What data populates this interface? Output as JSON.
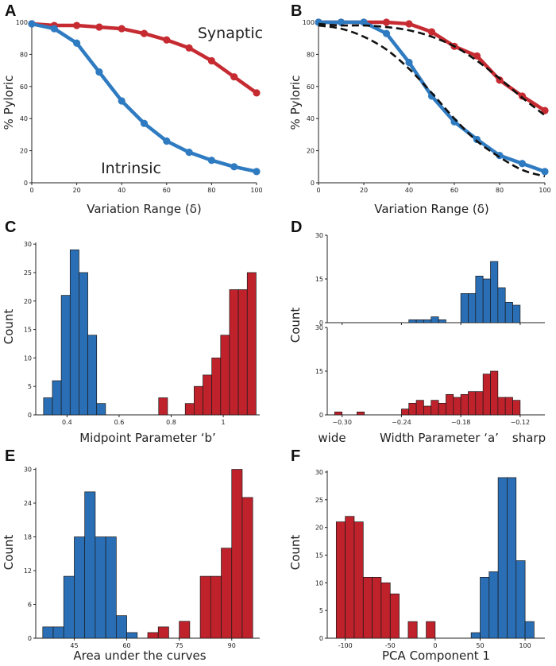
{
  "colors": {
    "blue": "#2f7bc1",
    "red": "#c62b32",
    "bar_blue": "#2a6fb5",
    "bar_red": "#c0222c"
  },
  "panel_letters": [
    "A",
    "B",
    "C",
    "D",
    "E",
    "F"
  ],
  "chart_data": [
    {
      "id": "A",
      "type": "line",
      "xlabel": "Variation Range (δ)",
      "ylabel": "% Pyloric",
      "xlim": [
        0,
        100
      ],
      "ylim": [
        0,
        100
      ],
      "xticks": [
        0,
        20,
        40,
        60,
        80,
        100
      ],
      "yticks": [
        0,
        20,
        40,
        60,
        80,
        100
      ],
      "x": [
        0,
        10,
        20,
        30,
        40,
        50,
        60,
        70,
        80,
        90,
        100
      ],
      "series": [
        {
          "name": "Synaptic",
          "color": "red",
          "values": [
            99,
            98,
            98,
            97,
            96,
            93,
            89,
            84,
            76,
            66,
            56
          ]
        },
        {
          "name": "Intrinsic",
          "color": "blue",
          "values": [
            99,
            96,
            87,
            69,
            51,
            37,
            26,
            19,
            14,
            10,
            7
          ]
        }
      ],
      "annotations": [
        "Synaptic",
        "Intrinsic"
      ]
    },
    {
      "id": "B",
      "type": "line",
      "xlabel": "Variation Range (δ)",
      "ylabel": "% Pyloric",
      "xlim": [
        0,
        100
      ],
      "ylim": [
        0,
        100
      ],
      "xticks": [
        0,
        20,
        40,
        60,
        80,
        100
      ],
      "yticks": [
        0,
        20,
        40,
        60,
        80,
        100
      ],
      "series": [
        {
          "name": "Synaptic",
          "color": "red",
          "x": [
            0,
            10,
            20,
            30,
            40,
            50,
            60,
            70,
            80,
            90,
            100
          ],
          "values": [
            100,
            100,
            100,
            100,
            99,
            94,
            85,
            79,
            64,
            54,
            45
          ]
        },
        {
          "name": "Intrinsic",
          "color": "blue",
          "x": [
            0,
            10,
            20,
            30,
            40,
            50,
            60,
            70,
            80,
            90,
            100
          ],
          "values": [
            100,
            100,
            100,
            93,
            75,
            54,
            38,
            27,
            17,
            12,
            7
          ]
        }
      ],
      "fits": [
        {
          "name": "Synaptic fit",
          "x": [
            0,
            10,
            20,
            30,
            40,
            50,
            60,
            70,
            80,
            90,
            100
          ],
          "values": [
            99,
            98,
            98,
            97,
            95,
            91,
            85,
            76,
            65,
            53,
            42
          ]
        },
        {
          "name": "Intrinsic fit",
          "x": [
            0,
            10,
            20,
            30,
            40,
            50,
            60,
            70,
            80,
            90,
            100
          ],
          "values": [
            98,
            96,
            91,
            83,
            71,
            56,
            40,
            26,
            16,
            8,
            4
          ]
        }
      ]
    },
    {
      "id": "C",
      "type": "bar",
      "subtype": "histogram",
      "xlabel": "Midpoint Parameter ‘b’",
      "ylabel": "Count",
      "xlim": [
        0.28,
        1.14
      ],
      "ylim": [
        0,
        31
      ],
      "xticks": [
        0.4,
        0.6,
        0.8,
        1.0
      ],
      "yticks": [
        0,
        5,
        10,
        15,
        20,
        25,
        30
      ],
      "bin_width": 0.034,
      "series": [
        {
          "name": "Intrinsic",
          "color": "bar_blue",
          "bin_starts": [
            0.31,
            0.344,
            0.378,
            0.412,
            0.446,
            0.48,
            0.514,
            0.548
          ],
          "values": [
            3,
            6,
            21,
            29,
            25,
            14,
            2,
            0
          ]
        },
        {
          "name": "Synaptic",
          "color": "bar_red",
          "bin_starts": [
            0.752,
            0.786,
            0.82,
            0.854,
            0.888,
            0.922,
            0.956,
            0.99,
            1.024,
            1.058,
            1.092
          ],
          "values": [
            3,
            0,
            0,
            2,
            5,
            7,
            10,
            14,
            22,
            22,
            25
          ]
        }
      ]
    },
    {
      "id": "D",
      "type": "bar",
      "subtype": "stacked-histograms",
      "xlabel": "Width Parameter ‘a’",
      "ylabel": "Count",
      "xlim": [
        -0.315,
        -0.095
      ],
      "xticks": [
        -0.3,
        -0.24,
        -0.18,
        -0.12
      ],
      "xtick_labels": [
        "−0.30",
        "−0.24",
        "−0.18",
        "−0.12"
      ],
      "extra_labels": {
        "left": "wide",
        "right": "sharp"
      },
      "bin_width": 0.0075,
      "subplots": [
        {
          "name": "Intrinsic",
          "color": "bar_blue",
          "ylim": [
            0,
            30
          ],
          "yticks": [
            0,
            15,
            30
          ],
          "bin_starts": [
            -0.3075,
            -0.3,
            -0.2925,
            -0.285,
            -0.2775,
            -0.27,
            -0.2625,
            -0.255,
            -0.2475,
            -0.24,
            -0.2325,
            -0.225,
            -0.2175,
            -0.21,
            -0.2025,
            -0.195,
            -0.1875,
            -0.18,
            -0.1725,
            -0.165,
            -0.1575,
            -0.15,
            -0.1425,
            -0.135,
            -0.1275,
            -0.12,
            -0.1125
          ],
          "values": [
            0,
            0,
            0,
            0,
            0,
            0,
            0,
            0,
            0,
            0,
            1,
            1,
            1,
            2,
            1,
            0,
            0,
            10,
            10,
            16,
            15,
            21,
            12,
            7,
            6,
            0,
            0
          ]
        },
        {
          "name": "Synaptic",
          "color": "bar_red",
          "ylim": [
            0,
            30
          ],
          "yticks": [
            0,
            15,
            30
          ],
          "bin_starts": [
            -0.3075,
            -0.3,
            -0.2925,
            -0.285,
            -0.2775,
            -0.27,
            -0.2625,
            -0.255,
            -0.2475,
            -0.24,
            -0.2325,
            -0.225,
            -0.2175,
            -0.21,
            -0.2025,
            -0.195,
            -0.1875,
            -0.18,
            -0.1725,
            -0.165,
            -0.1575,
            -0.15,
            -0.1425,
            -0.135,
            -0.1275,
            -0.12,
            -0.1125
          ],
          "values": [
            1,
            0,
            0,
            1,
            0,
            0,
            0,
            0,
            0,
            2,
            4,
            5,
            3,
            5,
            4,
            7,
            6,
            7,
            8,
            8,
            14,
            15,
            6,
            6,
            5,
            0,
            0
          ]
        }
      ]
    },
    {
      "id": "E",
      "type": "bar",
      "subtype": "histogram",
      "xlabel": "Area under the curves",
      "ylabel": "Count",
      "xlim": [
        34,
        98
      ],
      "ylim": [
        0,
        30.5
      ],
      "xticks": [
        45,
        60,
        75,
        90
      ],
      "yticks": [
        0,
        6,
        12,
        18,
        24,
        30
      ],
      "bin_width": 3,
      "series": [
        {
          "name": "Intrinsic",
          "color": "bar_blue",
          "bin_starts": [
            36,
            39,
            42,
            45,
            48,
            51,
            54,
            57,
            60
          ],
          "values": [
            2,
            2,
            11,
            18,
            26,
            18,
            18,
            4,
            1
          ]
        },
        {
          "name": "Synaptic",
          "color": "bar_red",
          "bin_starts": [
            66,
            69,
            72,
            75,
            78,
            81,
            84,
            87,
            90,
            93
          ],
          "values": [
            1,
            2,
            0,
            3,
            0,
            11,
            11,
            16,
            30,
            25
          ]
        }
      ]
    },
    {
      "id": "F",
      "type": "bar",
      "subtype": "histogram",
      "xlabel": "PCA Component 1",
      "ylabel": "Count",
      "xlim": [
        -120,
        122
      ],
      "ylim": [
        0,
        31
      ],
      "xticks": [
        -100,
        -50,
        0,
        50,
        100
      ],
      "yticks": [
        0,
        5,
        10,
        15,
        20,
        25,
        30
      ],
      "bin_width": 10,
      "series": [
        {
          "name": "Synaptic",
          "color": "bar_red",
          "bin_starts": [
            -110,
            -100,
            -90,
            -80,
            -70,
            -60,
            -50,
            -40,
            -30,
            -20,
            -10,
            0
          ],
          "values": [
            21,
            22,
            21,
            11,
            11,
            10,
            8,
            0,
            3,
            0,
            3,
            0
          ]
        },
        {
          "name": "Intrinsic",
          "color": "bar_blue",
          "bin_starts": [
            40,
            50,
            60,
            70,
            80,
            90,
            100
          ],
          "values": [
            1,
            11,
            12,
            29,
            29,
            14,
            3
          ]
        }
      ]
    }
  ]
}
